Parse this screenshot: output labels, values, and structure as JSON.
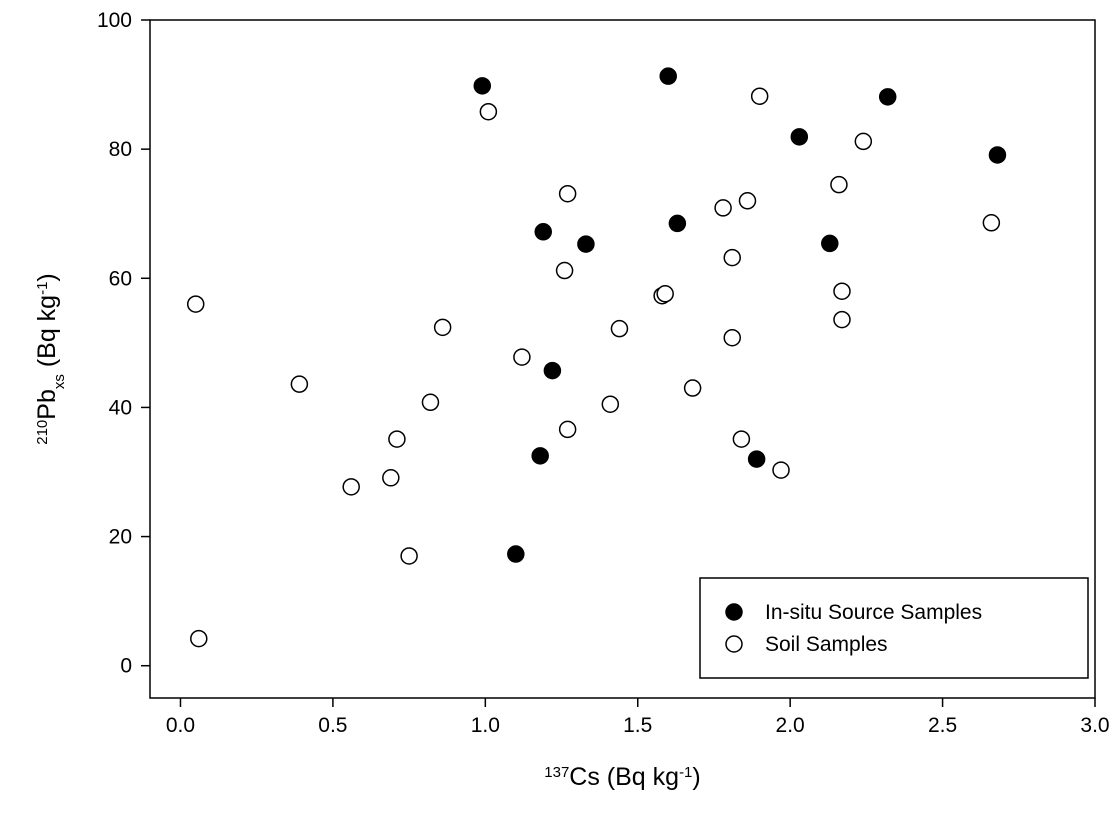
{
  "chart_data": {
    "type": "scatter",
    "x_label": [
      "137",
      "Cs (Bq kg",
      "-1",
      ")"
    ],
    "y_label": [
      "210",
      "Pb",
      "xs",
      " (Bq kg",
      "-1",
      ")"
    ],
    "xlim": [
      -0.1,
      3.0
    ],
    "xticks": [
      {
        "value": 0,
        "label": "0.0"
      },
      0.5,
      {
        "value": 1,
        "label": "1.0"
      },
      1.5,
      {
        "value": 2,
        "label": "2.0"
      },
      2.5,
      {
        "value": 3,
        "label": "3.0"
      }
    ],
    "ylim": [
      -5,
      100
    ],
    "yticks": [
      0,
      20,
      40,
      60,
      80,
      100
    ],
    "legend": "bottom-right",
    "series": [
      {
        "name": "In-situ Source Samples",
        "color": "#000000",
        "filled": true,
        "x": [
          0.99,
          1.6,
          2.68,
          2.32,
          2.03,
          1.19,
          1.33,
          1.63,
          2.13,
          1.22,
          1.18,
          1.89,
          1.1
        ],
        "values": [
          89.8,
          91.3,
          79.1,
          88.1,
          81.9,
          67.2,
          65.3,
          68.5,
          65.4,
          45.7,
          32.5,
          32.0,
          17.3
        ]
      },
      {
        "name": "Soil Samples",
        "color": "#000000",
        "filled": false,
        "x": [
          0.05,
          0.06,
          0.39,
          0.56,
          0.69,
          0.71,
          0.75,
          0.82,
          0.86,
          1.01,
          1.12,
          1.27,
          1.26,
          1.27,
          1.41,
          1.44,
          1.58,
          1.59,
          1.68,
          1.78,
          1.86,
          1.81,
          1.81,
          1.84,
          1.97,
          1.9,
          2.24,
          2.16,
          2.17,
          2.17,
          2.66
        ],
        "values": [
          56.0,
          4.2,
          43.6,
          27.7,
          29.1,
          35.1,
          17.0,
          40.8,
          52.4,
          85.8,
          47.8,
          73.1,
          61.2,
          36.6,
          40.5,
          52.2,
          57.3,
          57.6,
          43.0,
          70.9,
          72.0,
          63.2,
          50.8,
          35.1,
          30.3,
          88.2,
          81.2,
          74.5,
          58.0,
          53.6,
          68.6
        ]
      }
    ]
  }
}
